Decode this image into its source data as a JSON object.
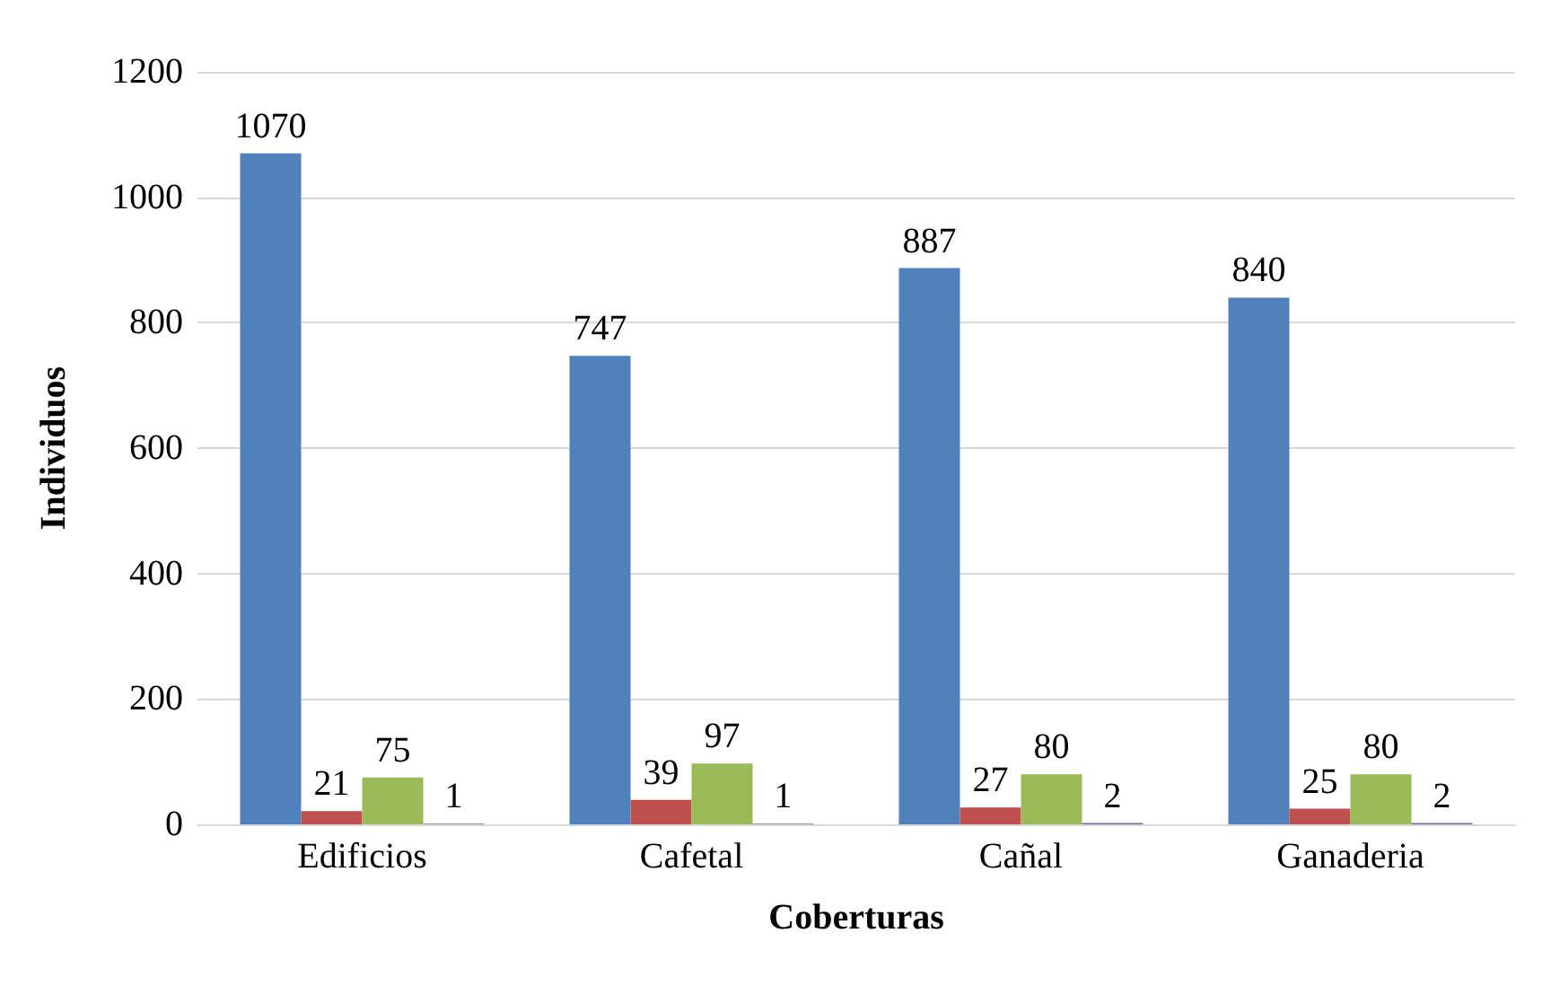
{
  "chart_data": {
    "type": "bar",
    "xlabel": "Coberturas",
    "ylabel": "Individuos",
    "categories": [
      "Edificios",
      "Cafetal",
      "Cañal",
      "Ganaderia"
    ],
    "series": [
      {
        "color": "#4f81bd",
        "values": [
          1070,
          747,
          887,
          840
        ]
      },
      {
        "color": "#c0504d",
        "values": [
          21,
          39,
          27,
          25
        ]
      },
      {
        "color": "#9bbb59",
        "values": [
          75,
          97,
          80,
          80
        ]
      },
      {
        "color": "#8064a2",
        "values": [
          1,
          1,
          2,
          2
        ]
      }
    ],
    "ylim": [
      0,
      1200
    ],
    "yticks": [
      0,
      200,
      400,
      600,
      800,
      1000,
      1200
    ],
    "grid": "y",
    "data_labels": true
  }
}
